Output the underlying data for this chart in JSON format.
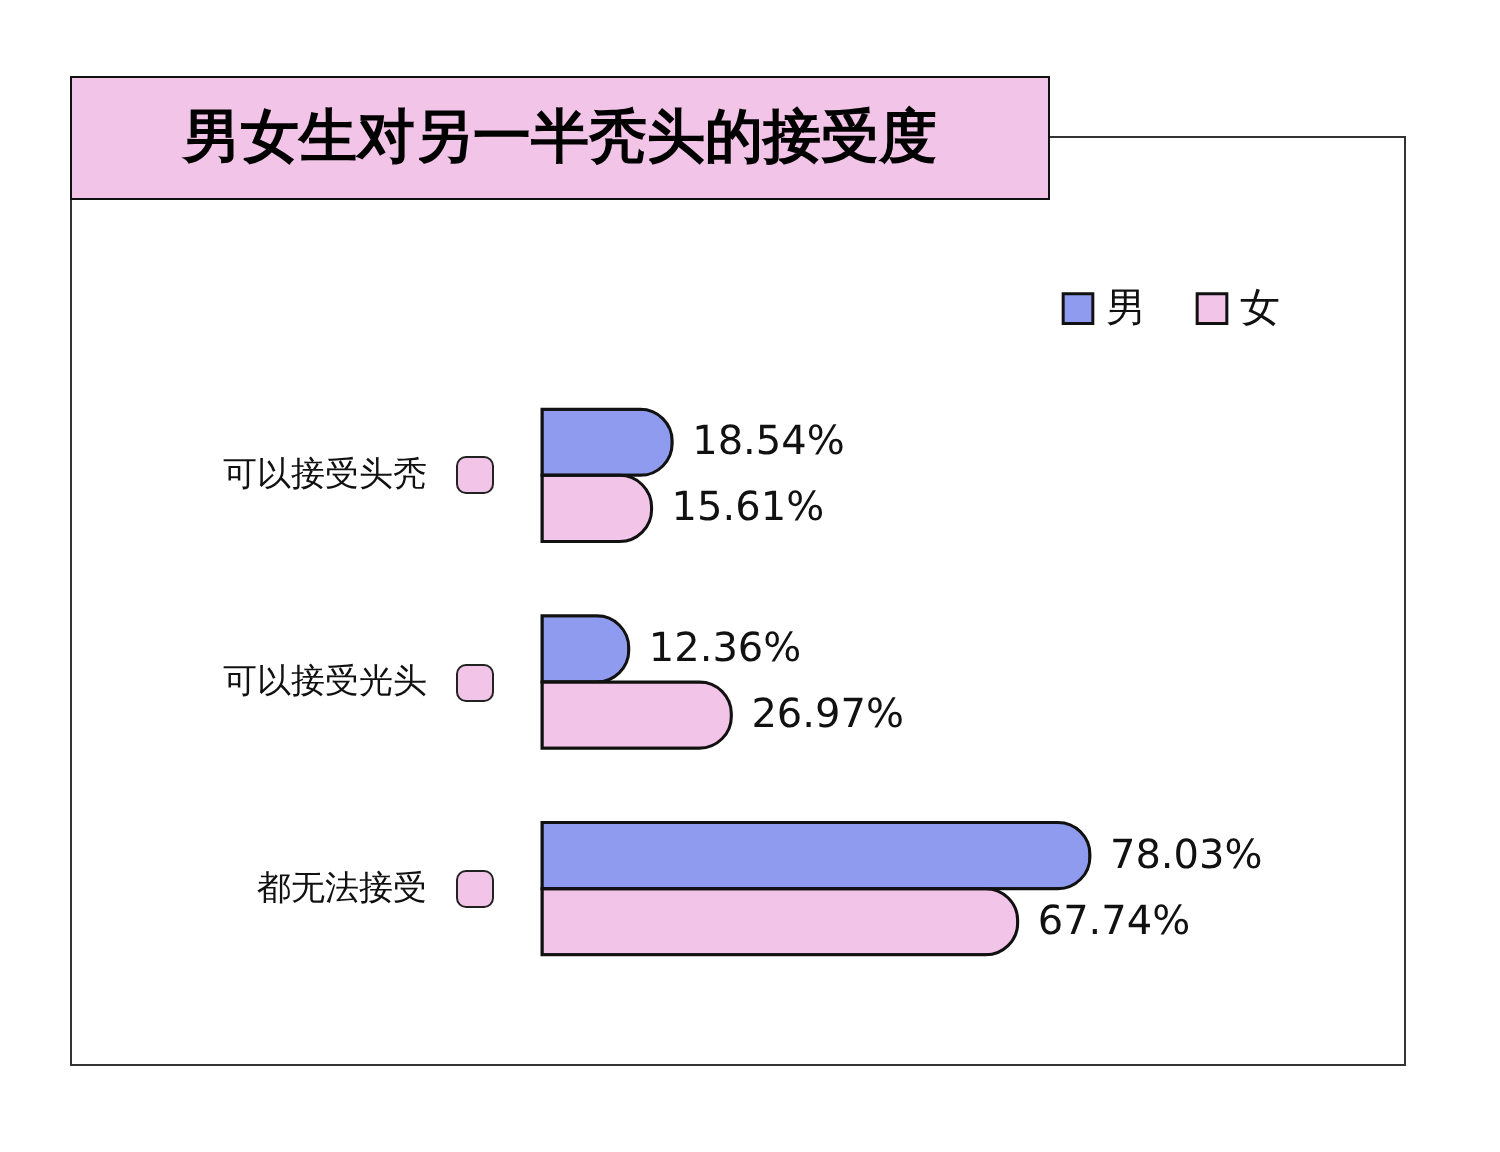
{
  "chart_data": {
    "type": "bar",
    "orientation": "horizontal",
    "title": "男女生对另一半秃头的接受度",
    "categories": [
      "可以接受头秃",
      "可以接受光头",
      "都无法接受"
    ],
    "series": [
      {
        "name": "男",
        "color": "#8e9bef",
        "values": [
          18.54,
          12.36,
          78.03
        ],
        "value_labels": [
          "18.54%",
          "12.36%",
          "78.03%"
        ]
      },
      {
        "name": "女",
        "color": "#f2c4e7",
        "values": [
          15.61,
          26.97,
          67.74
        ],
        "value_labels": [
          "15.61%",
          "26.97%",
          "67.74%"
        ]
      }
    ],
    "legend": "top right"
  }
}
